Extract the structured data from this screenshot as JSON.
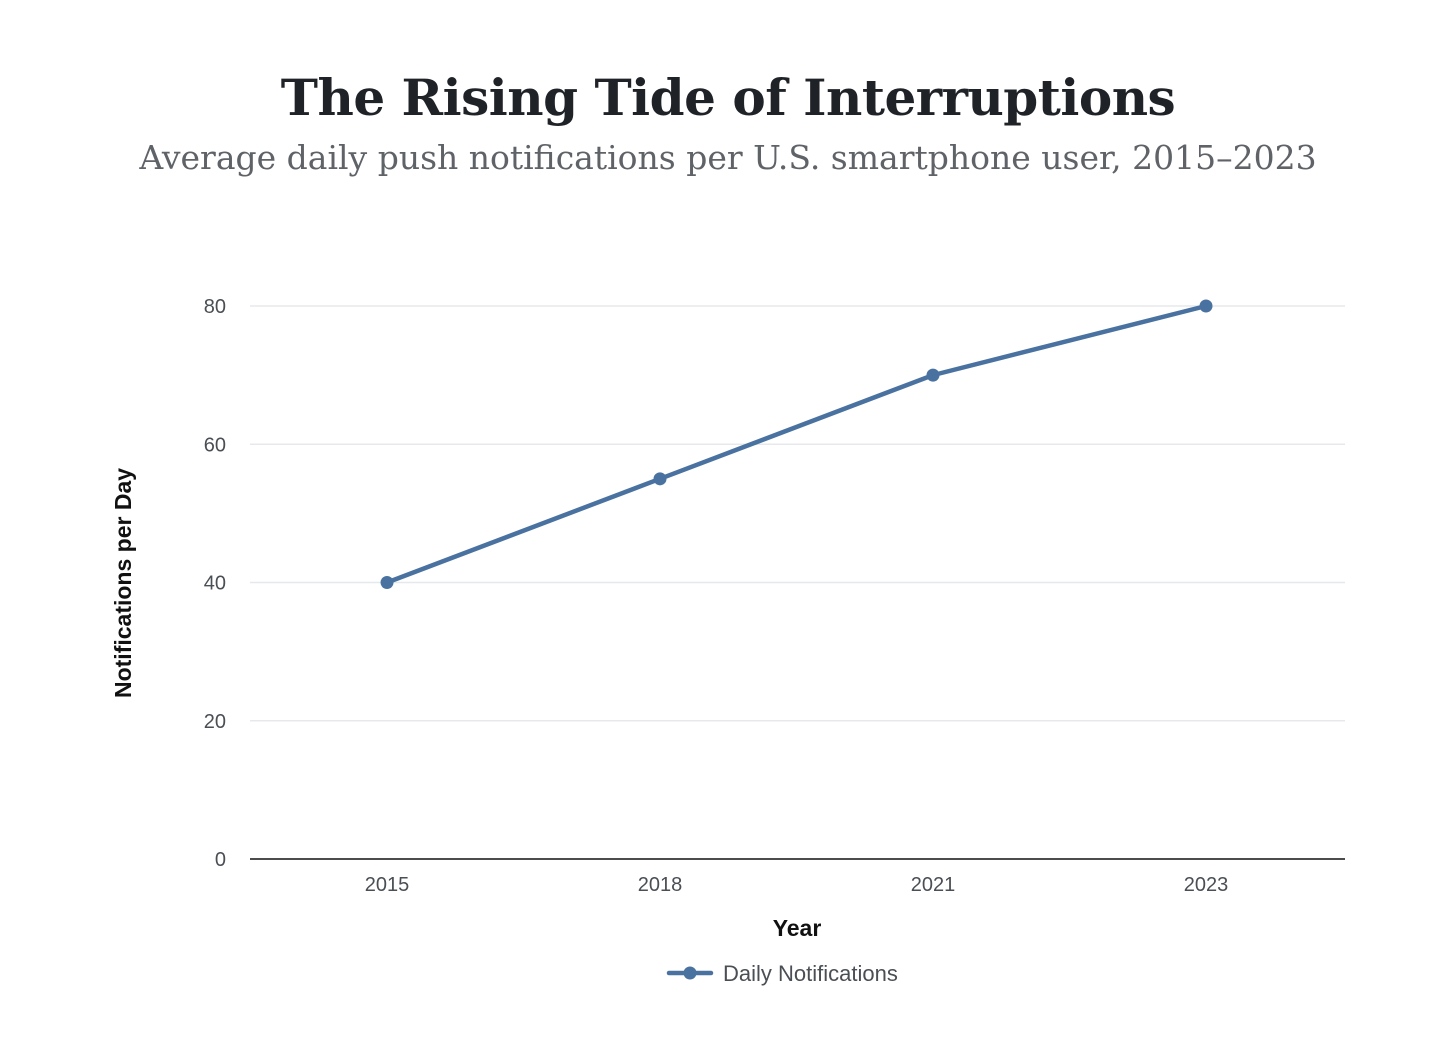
{
  "chart_data": {
    "type": "line",
    "title": "The Rising Tide of Interruptions",
    "subtitle": "Average daily push notifications per U.S. smartphone user, 2015–2023",
    "xlabel": "Year",
    "ylabel": "Notifications per Day",
    "categories": [
      "2015",
      "2018",
      "2021",
      "2023"
    ],
    "series": [
      {
        "name": "Daily Notifications",
        "values": [
          40,
          55,
          70,
          80
        ]
      }
    ],
    "ylim": [
      0,
      80
    ],
    "yticks": [
      0,
      20,
      40,
      60,
      80
    ],
    "grid": true,
    "legend": "bottom-center",
    "colors": {
      "line": "#4a72a0",
      "grid": "#e6e8ec",
      "axis": "#111111"
    }
  }
}
